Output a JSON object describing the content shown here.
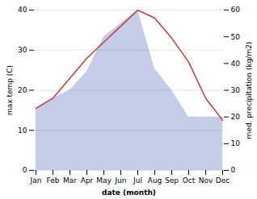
{
  "chart_data": {
    "type": "line",
    "xlabel": "date (month)",
    "ylabel": "max temp (C)",
    "y2label": "med. precipitation (kg/m2)",
    "categories": [
      "Jan",
      "Feb",
      "Mar",
      "Apr",
      "May",
      "Jun",
      "Jul",
      "Aug",
      "Sep",
      "Oct",
      "Nov",
      "Dec"
    ],
    "series": [
      {
        "type": "area",
        "axis": "y2",
        "color": "#c5cce8",
        "values": [
          23,
          27,
          30,
          37,
          50,
          55,
          60,
          38,
          30,
          20,
          20,
          20
        ]
      },
      {
        "type": "line",
        "color": "#c93a3a",
        "values": [
          15.5,
          18,
          23,
          28,
          32,
          36,
          40,
          38,
          33,
          27,
          18,
          12.5
        ]
      }
    ],
    "ylim": [
      0,
      40
    ],
    "yticks": [
      0,
      10,
      20,
      30,
      40
    ],
    "y2lim": [
      0,
      60
    ],
    "y2ticks": [
      0,
      10,
      20,
      30,
      40,
      50,
      60
    ],
    "grid": true
  }
}
